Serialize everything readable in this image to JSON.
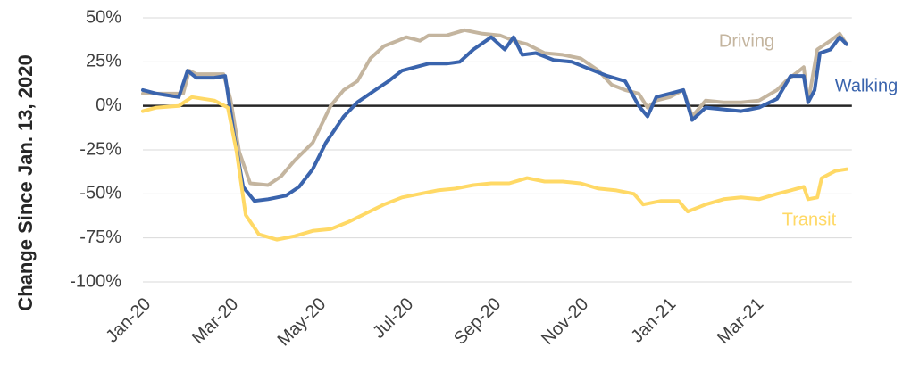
{
  "chart_data": {
    "type": "line",
    "ylabel": "Change Since Jan. 13, 2020",
    "xlim": [
      0,
      16.2
    ],
    "xticks": [
      {
        "value": 0,
        "label": "Jan-20"
      },
      {
        "value": 2,
        "label": "Mar-20"
      },
      {
        "value": 4,
        "label": "May-20"
      },
      {
        "value": 6,
        "label": "Jul-20"
      },
      {
        "value": 8,
        "label": "Sep-20"
      },
      {
        "value": 10,
        "label": "Nov-20"
      },
      {
        "value": 12,
        "label": "Jan-21"
      },
      {
        "value": 14,
        "label": "Mar-21"
      }
    ],
    "ylim": [
      -100,
      50
    ],
    "yticks": [
      {
        "value": 50,
        "label": "50%"
      },
      {
        "value": 25,
        "label": "25%"
      },
      {
        "value": 0,
        "label": "0%"
      },
      {
        "value": -25,
        "label": "-25%"
      },
      {
        "value": -50,
        "label": "-50%"
      },
      {
        "value": -75,
        "label": "-75%"
      },
      {
        "value": -100,
        "label": "-100%"
      }
    ],
    "grid": true,
    "series": [
      {
        "name": "Driving",
        "color": "#c4b59f",
        "x": [
          0,
          0.92,
          1.06,
          1.22,
          1.84,
          2.0,
          2.2,
          2.45,
          2.86,
          3.16,
          3.47,
          3.88,
          4.29,
          4.59,
          4.9,
          5.2,
          5.51,
          5.82,
          6.02,
          6.33,
          6.53,
          6.94,
          7.35,
          7.76,
          8.16,
          8.47,
          8.78,
          9.18,
          9.59,
          10.0,
          10.41,
          10.71,
          11.02,
          11.33,
          11.53,
          11.73,
          12.04,
          12.35,
          12.55,
          12.86,
          13.27,
          13.67,
          14.08,
          14.49,
          14.69,
          15.0,
          15.1,
          15.2,
          15.41,
          15.71,
          15.92,
          16.08
        ],
        "values": [
          7,
          7,
          20,
          18,
          18,
          4,
          -26,
          -44,
          -45,
          -40,
          -31,
          -21,
          0,
          9,
          14,
          27,
          34,
          37,
          39,
          37,
          40,
          40,
          43,
          41,
          40,
          37,
          35,
          30,
          29,
          27,
          20,
          12,
          9,
          7,
          -1,
          3,
          5,
          9,
          -6,
          3,
          2,
          2,
          3,
          9,
          14,
          20,
          22,
          2,
          32,
          37,
          41,
          35
        ]
      },
      {
        "name": "Walking",
        "color": "#3a64ad",
        "x": [
          0,
          0.31,
          0.82,
          1.02,
          1.22,
          1.63,
          1.88,
          2.08,
          2.29,
          2.55,
          2.86,
          3.27,
          3.57,
          3.88,
          4.18,
          4.59,
          4.9,
          5.31,
          5.61,
          5.92,
          6.22,
          6.53,
          6.94,
          7.24,
          7.55,
          7.96,
          8.27,
          8.47,
          8.67,
          8.98,
          9.39,
          9.8,
          10.2,
          10.61,
          11.02,
          11.33,
          11.53,
          11.73,
          12.04,
          12.35,
          12.55,
          12.86,
          13.27,
          13.67,
          14.08,
          14.49,
          14.8,
          15.1,
          15.2,
          15.35,
          15.47,
          15.71,
          15.92,
          16.08
        ],
        "values": [
          9,
          7,
          5,
          20,
          16,
          16,
          17,
          -16,
          -46,
          -54,
          -53,
          -51,
          -46,
          -36,
          -21,
          -6,
          2,
          9,
          14,
          20,
          22,
          24,
          24,
          25,
          32,
          39,
          32,
          39,
          29,
          30,
          26,
          25,
          21,
          17,
          14,
          0,
          -6,
          5,
          7,
          9,
          -8,
          -1,
          -2,
          -3,
          -1,
          4,
          17,
          17,
          2,
          9,
          30,
          32,
          39,
          35
        ]
      },
      {
        "name": "Transit",
        "color": "#ffd966",
        "x": [
          0,
          0.31,
          0.82,
          1.12,
          1.63,
          1.94,
          2.14,
          2.35,
          2.65,
          3.06,
          3.47,
          3.88,
          4.29,
          4.69,
          5.1,
          5.51,
          5.92,
          6.33,
          6.73,
          7.14,
          7.55,
          7.96,
          8.37,
          8.78,
          9.18,
          9.59,
          10.0,
          10.41,
          10.82,
          11.22,
          11.43,
          11.84,
          12.24,
          12.45,
          12.86,
          13.27,
          13.67,
          14.08,
          14.49,
          14.8,
          15.1,
          15.2,
          15.41,
          15.51,
          15.82,
          16.08
        ],
        "values": [
          -3,
          -1,
          0,
          5,
          3,
          -1,
          -26,
          -62,
          -73,
          -76,
          -74,
          -71,
          -70,
          -66,
          -61,
          -56,
          -52,
          -50,
          -48,
          -47,
          -45,
          -44,
          -44,
          -41,
          -43,
          -43,
          -44,
          -47,
          -48,
          -50,
          -56,
          -54,
          -54,
          -60,
          -56,
          -53,
          -52,
          -53,
          -50,
          -48,
          -46,
          -53,
          -52,
          -41,
          -37,
          -36
        ]
      }
    ]
  }
}
